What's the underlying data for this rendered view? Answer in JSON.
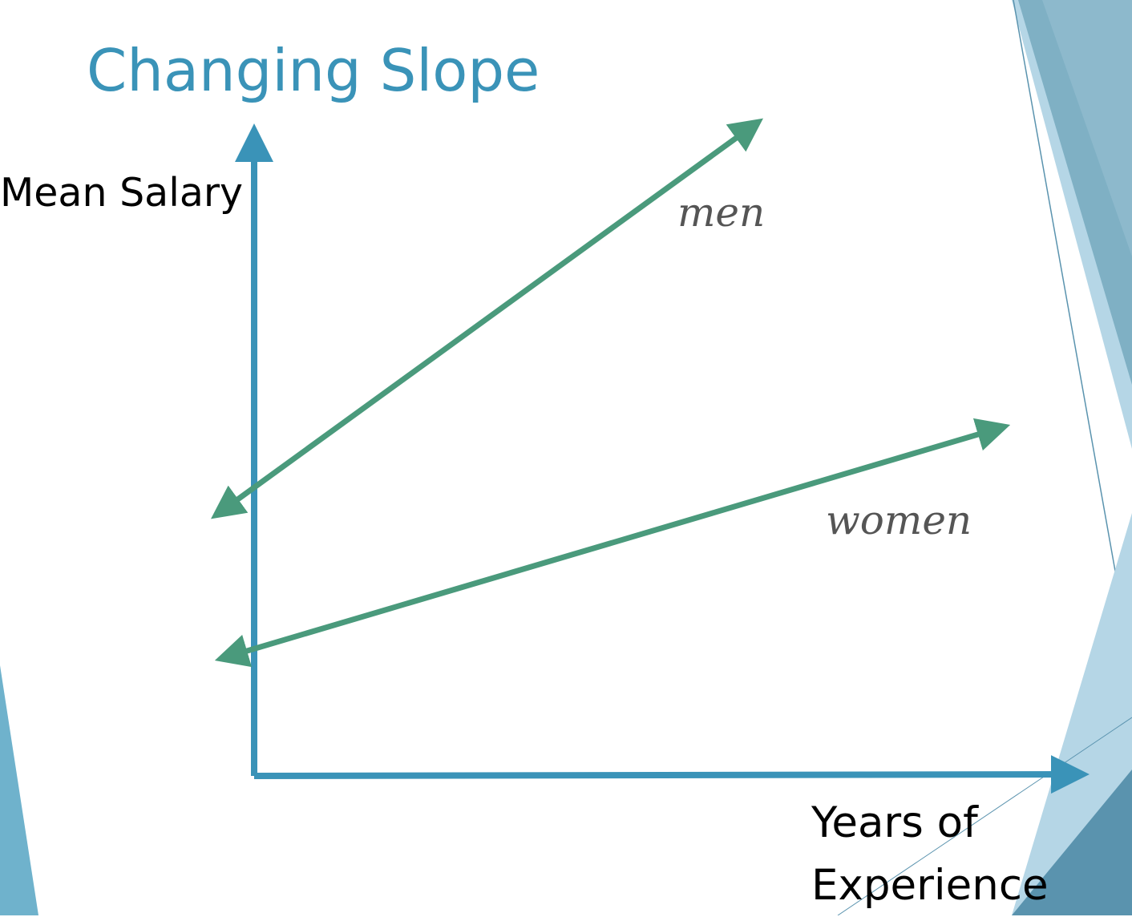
{
  "slide": {
    "title": "Changing Slope"
  },
  "chart_data": {
    "type": "line",
    "xlabel": [
      "Years of",
      "Experience"
    ],
    "ylabel": "Mean Salary",
    "grid": false,
    "series": [
      {
        "name": "men",
        "color": "#4a9a7c"
      },
      {
        "name": "women",
        "color": "#4a9a7c"
      }
    ],
    "axis_color": "#3a93b8"
  },
  "theme": {
    "accent": "#3a93b8",
    "decor_dark": "#5a93ae",
    "decor_mid": "#7fb0c4",
    "decor_light": "#b5d6e6"
  }
}
